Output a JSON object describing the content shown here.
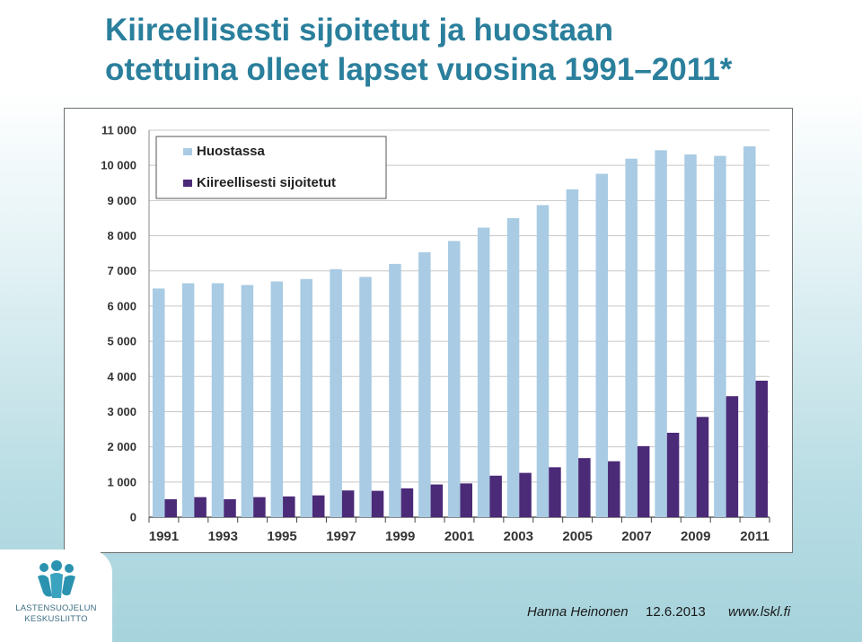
{
  "slide": {
    "title_line1": "Kiireellisesti sijoitetut ja huostaan",
    "title_line2": "otettuina olleet lapset vuosina 1991–2011*"
  },
  "colors": {
    "title": "#2a7f9c",
    "huostassa": "#a9cbe3",
    "kiireellisesti": "#4b2a78",
    "logo": "#2b93b0"
  },
  "logo": {
    "icon": "three-figures-logo-icon",
    "line1": "LASTENSUOJELUN",
    "line2": "KESKUSLIITTO"
  },
  "footer": {
    "author": "Hanna Heinonen",
    "date": "12.6.2013",
    "url": "www.lskl.fi"
  },
  "chart_data": {
    "type": "bar",
    "categories": [
      "1991",
      "1992",
      "1993",
      "1994",
      "1995",
      "1996",
      "1997",
      "1998",
      "1999",
      "2000",
      "2001",
      "2002",
      "2003",
      "2004",
      "2005",
      "2006",
      "2007",
      "2008",
      "2009",
      "2010",
      "2011"
    ],
    "x_tick_labels": [
      "1991",
      "1993",
      "1995",
      "1997",
      "1999",
      "2001",
      "2003",
      "2005",
      "2007",
      "2009",
      "2011"
    ],
    "y_tick_labels": [
      "0",
      "1 000",
      "2 000",
      "3 000",
      "4 000",
      "5 000",
      "6 000",
      "7 000",
      "8 000",
      "9 000",
      "10 000",
      "11 000"
    ],
    "ylim": [
      0,
      11000
    ],
    "grid": true,
    "legend_position": "top-left",
    "series": [
      {
        "name": "Huostassa",
        "color": "#a9cbe3",
        "values": [
          6500,
          6650,
          6650,
          6600,
          6700,
          6770,
          7050,
          6830,
          7200,
          7530,
          7850,
          8230,
          8500,
          8870,
          9320,
          9760,
          10190,
          10430,
          10310,
          10270,
          10540
        ]
      },
      {
        "name": "Kiireellisesti sijoitetut",
        "color": "#4b2a78",
        "values": [
          510,
          570,
          510,
          570,
          590,
          620,
          760,
          750,
          820,
          930,
          960,
          1180,
          1260,
          1420,
          1680,
          1590,
          2020,
          2400,
          2850,
          3440,
          3880
        ]
      }
    ]
  }
}
